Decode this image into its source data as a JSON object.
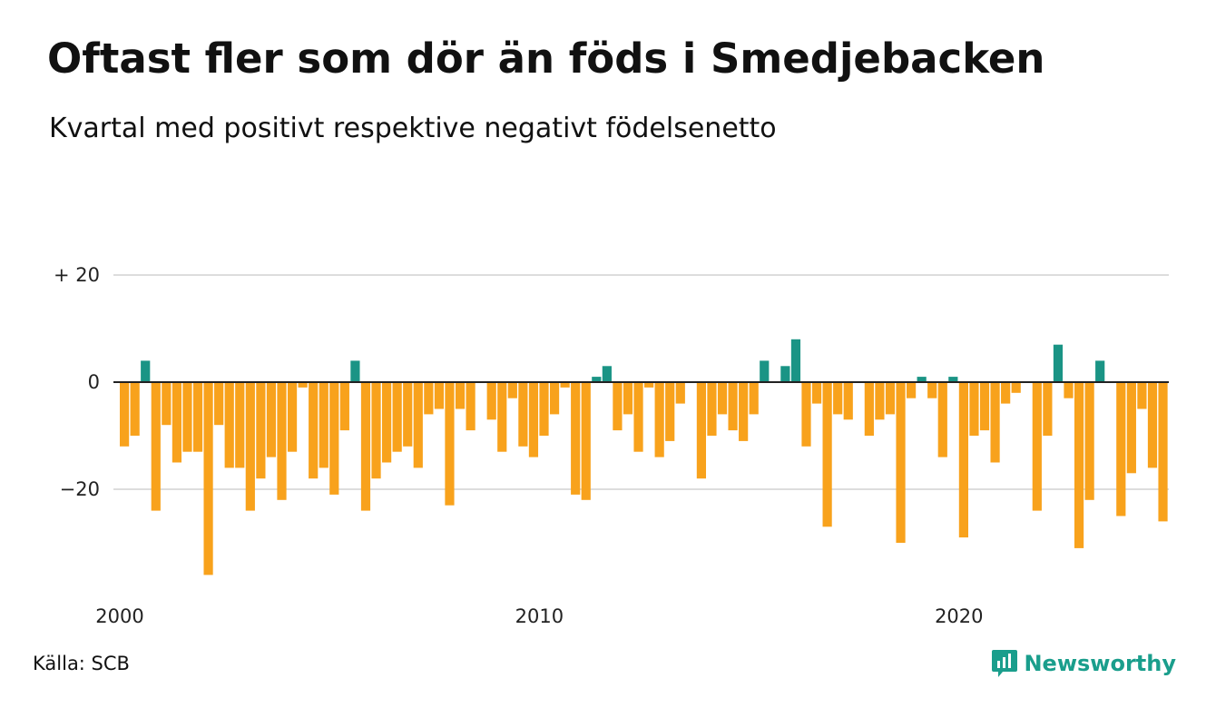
{
  "header": {
    "title": "Oftast fler som dör än föds i Smedjebacken",
    "subtitle": "Kvartal med positivt respektive negativt födelsenetto"
  },
  "footer": {
    "source": "Källa: SCB",
    "brand": "Newsworthy",
    "brand_icon": "newsworthy-logo-icon"
  },
  "colors": {
    "positive": "#1a9485",
    "negative": "#f8a21c",
    "grid": "#dddddd",
    "zero_line": "#222222",
    "brand": "#1a9e8c"
  },
  "chart_data": {
    "type": "bar",
    "title": "Oftast fler som dör än föds i Smedjebacken",
    "subtitle": "Kvartal med positivt respektive negativt födelsenetto",
    "xlabel": "",
    "ylabel": "",
    "x_tick_labels": [
      "2000",
      "2010",
      "2020"
    ],
    "x_tick_years": [
      2000,
      2010,
      2020
    ],
    "y_ticks": [
      {
        "value": 20,
        "label": "+ 20"
      },
      {
        "value": 0,
        "label": "0"
      },
      {
        "value": -20,
        "label": "−20"
      }
    ],
    "ylim": [
      -38,
      26
    ],
    "grid": true,
    "start_year": 2000,
    "quarters_per_year": 4,
    "values": [
      -12,
      -10,
      4,
      -24,
      -8,
      -15,
      -13,
      -13,
      -36,
      -8,
      -16,
      -16,
      -24,
      -18,
      -14,
      -22,
      -13,
      -1,
      -18,
      -16,
      -21,
      -9,
      4,
      -24,
      -18,
      -15,
      -13,
      -12,
      -16,
      -6,
      -5,
      -23,
      -5,
      -9,
      0,
      -7,
      -13,
      -3,
      -12,
      -14,
      -10,
      -6,
      -1,
      -21,
      -22,
      1,
      3,
      -9,
      -6,
      -13,
      -1,
      -14,
      -11,
      -4,
      0,
      -18,
      -10,
      -6,
      -9,
      -11,
      -6,
      4,
      0,
      3,
      8,
      -12,
      -4,
      -27,
      -6,
      -7,
      0,
      -10,
      -7,
      -6,
      -30,
      -3,
      1,
      -3,
      -14,
      1,
      -29,
      -10,
      -9,
      -15,
      -4,
      -2,
      0,
      -24,
      -10,
      7,
      -3,
      -31,
      -22,
      4,
      0,
      -25,
      -17,
      -5,
      -16,
      -26
    ]
  }
}
